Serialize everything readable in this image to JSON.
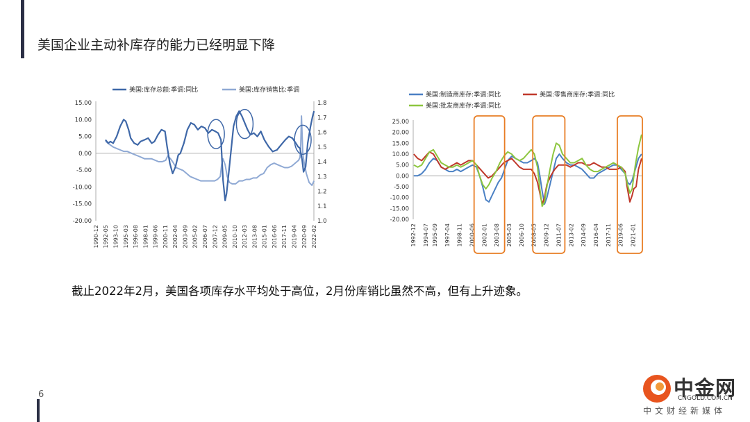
{
  "slide": {
    "title": "美国企业主动补库存的能力已经明显下降",
    "caption": "截止2022年2月，美国各项库存水平均处于高位，2月份库销比虽然不高，但有上升迹象。",
    "page_number": "6"
  },
  "logo": {
    "name": "中金网",
    "url": "CNGOLD.COM.CN",
    "sub": "中文财经新媒体",
    "brand_color": "#e8541e"
  },
  "chart_data": [
    {
      "type": "line",
      "dual_axis": true,
      "legend_position": "top",
      "series": [
        {
          "name": "美国:库存总额:季调:同比",
          "axis": "left",
          "color": "#3f68a8",
          "x": [
            1992.3,
            1992.7,
            1993.0,
            1993.4,
            1993.9,
            1994.4,
            1994.9,
            1995.2,
            1995.6,
            1995.9,
            1996.4,
            1996.9,
            1997.3,
            1997.9,
            1998.4,
            1998.9,
            1999.3,
            1999.8,
            2000.3,
            2000.8,
            2001.1,
            2001.5,
            2001.9,
            2002.3,
            2002.7,
            2003.0,
            2003.5,
            2004.0,
            2004.5,
            2005.0,
            2005.5,
            2006.0,
            2006.5,
            2007.0,
            2007.5,
            2008.0,
            2008.4,
            2008.8,
            2009.1,
            2009.4,
            2009.6,
            2009.9,
            2010.3,
            2010.6,
            2011.0,
            2011.4,
            2011.8,
            2012.2,
            2012.6,
            2013.0,
            2013.5,
            2014.0,
            2014.5,
            2015.0,
            2015.6,
            2016.2,
            2016.8,
            2017.4,
            2018.0,
            2018.5,
            2019.0,
            2019.5,
            2019.8,
            2020.1,
            2020.4,
            2020.6,
            2020.9,
            2021.2,
            2021.6,
            2021.9,
            2022.1
          ],
          "values": [
            4.0,
            3.0,
            3.5,
            3.0,
            5.0,
            8.0,
            10.0,
            9.5,
            7.0,
            4.5,
            3.0,
            2.5,
            3.5,
            4.0,
            4.5,
            3.0,
            3.5,
            5.5,
            7.0,
            6.5,
            2.0,
            -3.0,
            -6.0,
            -4.0,
            -0.5,
            0.0,
            3.0,
            7.0,
            9.0,
            8.5,
            7.0,
            8.0,
            7.5,
            6.0,
            7.0,
            6.5,
            6.0,
            4.0,
            -8.0,
            -14.0,
            -12.0,
            -6.0,
            2.0,
            8.0,
            11.0,
            12.5,
            11.0,
            9.0,
            7.0,
            5.5,
            6.0,
            5.0,
            6.5,
            4.0,
            2.0,
            0.5,
            1.0,
            2.5,
            4.0,
            5.0,
            4.5,
            3.0,
            2.0,
            1.5,
            -2.0,
            -5.5,
            -4.0,
            3.0,
            8.0,
            11.0,
            12.5
          ]
        },
        {
          "name": "美国:库存销售比:季调",
          "axis": "right",
          "color": "#8fa9d4",
          "x": [
            1992.3,
            1992.8,
            1993.4,
            1993.9,
            1994.4,
            1994.9,
            1995.4,
            1995.9,
            1996.4,
            1996.9,
            1997.4,
            1997.9,
            1998.4,
            1998.9,
            1999.4,
            1999.9,
            2000.4,
            2000.9,
            2001.2,
            2001.6,
            2001.9,
            2002.4,
            2002.9,
            2003.4,
            2003.9,
            2004.4,
            2004.9,
            2005.4,
            2005.9,
            2006.4,
            2006.9,
            2007.4,
            2007.9,
            2008.3,
            2008.7,
            2008.9,
            2009.1,
            2009.4,
            2009.7,
            2010.0,
            2010.4,
            2010.9,
            2011.4,
            2011.9,
            2012.4,
            2012.9,
            2013.4,
            2013.9,
            2014.4,
            2014.9,
            2015.4,
            2015.9,
            2016.4,
            2016.9,
            2017.4,
            2017.9,
            2018.4,
            2018.9,
            2019.4,
            2019.9,
            2020.1,
            2020.2,
            2020.3,
            2020.5,
            2020.7,
            2021.0,
            2021.4,
            2021.8,
            2022.1
          ],
          "values": [
            1.54,
            1.52,
            1.5,
            1.49,
            1.48,
            1.47,
            1.47,
            1.46,
            1.45,
            1.44,
            1.43,
            1.42,
            1.42,
            1.42,
            1.41,
            1.4,
            1.4,
            1.41,
            1.44,
            1.42,
            1.4,
            1.36,
            1.35,
            1.34,
            1.32,
            1.3,
            1.29,
            1.28,
            1.27,
            1.27,
            1.27,
            1.27,
            1.27,
            1.28,
            1.3,
            1.38,
            1.42,
            1.38,
            1.3,
            1.26,
            1.25,
            1.25,
            1.27,
            1.27,
            1.28,
            1.28,
            1.29,
            1.29,
            1.31,
            1.32,
            1.36,
            1.38,
            1.39,
            1.38,
            1.37,
            1.36,
            1.36,
            1.37,
            1.39,
            1.41,
            1.43,
            1.52,
            1.71,
            1.45,
            1.39,
            1.32,
            1.26,
            1.24,
            1.27
          ]
        }
      ],
      "left_axis": {
        "ylim": [
          -20,
          15
        ],
        "ticks": [
          "15.00",
          "10.00",
          "5.00",
          "0.00",
          "-5.00",
          "-10.00",
          "-15.00",
          "-20.00"
        ]
      },
      "right_axis": {
        "ylim": [
          1.0,
          1.8
        ],
        "ticks": [
          "1.80",
          "1.70",
          "1.60",
          "1.50",
          "1.40",
          "1.30",
          "1.20",
          "1.10",
          "1.00"
        ]
      },
      "x_ticks": [
        "1990-12",
        "1992-05",
        "1993-10",
        "1995-03",
        "1996-08",
        "1998-01",
        "1999-06",
        "2000-11",
        "2002-04",
        "2003-09",
        "2005-02",
        "2006-07",
        "2007-12",
        "2009-05",
        "2010-10",
        "2012-03",
        "2013-08",
        "2015-01",
        "2016-06",
        "2017-11",
        "2019-04",
        "2020-09",
        "2022-02"
      ],
      "xlim": [
        1990.92,
        2022.08
      ],
      "highlights": [
        {
          "shape": "ellipse",
          "x": 2008.1,
          "y": 5.7,
          "color": "#3f68a8"
        },
        {
          "shape": "ellipse",
          "x": 2012.2,
          "y": 8.7,
          "color": "#3f68a8"
        },
        {
          "shape": "ellipse",
          "x": 2020.5,
          "y": 4.0,
          "color": "#3f68a8"
        }
      ]
    },
    {
      "type": "line",
      "legend_position": "top",
      "series": [
        {
          "name": "美国:制造商库存:季调:同比",
          "color": "#4a80c4",
          "x": [
            1993.0,
            1993.5,
            1994.0,
            1994.5,
            1995.0,
            1995.5,
            1996.0,
            1996.5,
            1997.0,
            1997.5,
            1998.0,
            1998.5,
            1999.0,
            1999.5,
            2000.0,
            2000.5,
            2001.0,
            2001.4,
            2001.8,
            2002.2,
            2002.6,
            2003.0,
            2003.4,
            2003.8,
            2004.2,
            2004.6,
            2005.0,
            2005.5,
            2006.0,
            2006.5,
            2007.0,
            2007.5,
            2008.0,
            2008.4,
            2008.8,
            2009.1,
            2009.4,
            2009.7,
            2010.0,
            2010.4,
            2010.8,
            2011.2,
            2011.6,
            2012.0,
            2012.5,
            2013.0,
            2013.5,
            2014.0,
            2014.5,
            2015.0,
            2015.5,
            2016.0,
            2016.5,
            2017.0,
            2017.5,
            2018.0,
            2018.5,
            2019.0,
            2019.5,
            2020.0,
            2020.3,
            2020.6,
            2020.9,
            2021.3,
            2021.7,
            2022.1
          ],
          "values": [
            0,
            0,
            1,
            3,
            6,
            8,
            7,
            4,
            3,
            2,
            2,
            3,
            2,
            3,
            4,
            5,
            4,
            0,
            -5,
            -11,
            -12,
            -9,
            -6,
            -3,
            -1,
            3,
            7,
            9,
            8,
            7,
            6,
            6,
            7,
            8,
            6,
            0,
            -7,
            -13,
            -10,
            -4,
            2,
            8,
            10,
            8,
            6,
            5,
            5,
            4,
            3,
            1,
            -1,
            -1,
            1,
            2,
            3,
            4,
            5,
            5,
            3,
            1,
            -3,
            -4,
            -2,
            3,
            8,
            10
          ]
        },
        {
          "name": "美国:零售商库存:季调:同比",
          "color": "#c0392b",
          "x": [
            1993.0,
            1993.5,
            1994.0,
            1994.5,
            1995.0,
            1995.5,
            1996.0,
            1996.5,
            1997.0,
            1997.5,
            1998.0,
            1998.5,
            1999.0,
            1999.5,
            2000.0,
            2000.5,
            2001.0,
            2001.5,
            2002.0,
            2002.5,
            2003.0,
            2003.5,
            2004.0,
            2004.5,
            2005.0,
            2005.5,
            2006.0,
            2006.5,
            2007.0,
            2007.5,
            2008.0,
            2008.4,
            2008.8,
            2009.1,
            2009.4,
            2009.7,
            2010.0,
            2010.5,
            2011.0,
            2011.5,
            2012.0,
            2012.5,
            2013.0,
            2013.5,
            2014.0,
            2014.5,
            2015.0,
            2015.5,
            2016.0,
            2016.5,
            2017.0,
            2017.5,
            2018.0,
            2018.5,
            2019.0,
            2019.5,
            2020.0,
            2020.2,
            2020.4,
            2020.6,
            2020.9,
            2021.1,
            2021.4,
            2021.7,
            2022.1
          ],
          "values": [
            10,
            8,
            7,
            9,
            11,
            10,
            7,
            4,
            3,
            4,
            5,
            6,
            5,
            6,
            7,
            7,
            5,
            3,
            1,
            -1,
            0,
            2,
            4,
            6,
            7,
            8,
            6,
            4,
            3,
            3,
            3,
            1,
            -3,
            -8,
            -13,
            -10,
            -4,
            0,
            3,
            5,
            5,
            5,
            4,
            5,
            6,
            6,
            5,
            5,
            6,
            5,
            4,
            4,
            3,
            3,
            3,
            4,
            2,
            -4,
            -8,
            -12,
            -9,
            -6,
            -5,
            3,
            8
          ]
        },
        {
          "name": "美国:批发商库存:季调:同比",
          "color": "#8dc63f",
          "x": [
            1993.0,
            1993.5,
            1994.0,
            1994.5,
            1995.0,
            1995.5,
            1996.0,
            1996.5,
            1997.0,
            1997.5,
            1998.0,
            1998.5,
            1999.0,
            1999.5,
            2000.0,
            2000.5,
            2001.0,
            2001.4,
            2001.8,
            2002.2,
            2002.6,
            2003.0,
            2003.5,
            2004.0,
            2004.5,
            2005.0,
            2005.5,
            2006.0,
            2006.5,
            2007.0,
            2007.5,
            2008.0,
            2008.4,
            2008.8,
            2009.1,
            2009.4,
            2009.7,
            2010.0,
            2010.4,
            2010.8,
            2011.2,
            2011.6,
            2012.0,
            2012.5,
            2013.0,
            2013.5,
            2014.0,
            2014.5,
            2015.0,
            2015.5,
            2016.0,
            2016.5,
            2017.0,
            2017.5,
            2018.0,
            2018.5,
            2019.0,
            2019.5,
            2020.0,
            2020.3,
            2020.6,
            2020.9,
            2021.3,
            2021.7,
            2022.1
          ],
          "values": [
            5,
            4,
            5,
            8,
            11,
            12,
            9,
            6,
            5,
            4,
            4,
            5,
            4,
            5,
            6,
            7,
            5,
            0,
            -4,
            -6,
            -4,
            -1,
            2,
            6,
            9,
            11,
            10,
            8,
            7,
            8,
            10,
            12,
            10,
            4,
            -6,
            -14,
            -12,
            -5,
            3,
            10,
            15,
            14,
            10,
            8,
            6,
            6,
            7,
            8,
            5,
            3,
            2,
            2,
            3,
            4,
            5,
            6,
            5,
            4,
            1,
            -4,
            -8,
            -6,
            5,
            13,
            19
          ]
        }
      ],
      "ylim": [
        -20,
        25
      ],
      "y_ticks": [
        "25.00",
        "20.00",
        "15.00",
        "10.00",
        "5.00",
        "0.00",
        "-5.00",
        "-10.00",
        "-15.00",
        "-20.00"
      ],
      "x_ticks": [
        "1992-12",
        "1994-07",
        "1995-09",
        "1997-04",
        "1998-11",
        "2000-06",
        "2002-01",
        "2003-08",
        "2005-03",
        "2006-10",
        "2008-05",
        "2009-12",
        "2011-07",
        "2013-02",
        "2014-09",
        "2016-04",
        "2017-11",
        "2019-06",
        "2021-01"
      ],
      "xlim": [
        1992.92,
        2022.2
      ],
      "highlights": [
        {
          "shape": "rounded-rect",
          "x0": 2000.7,
          "x1": 2004.6,
          "color": "#e87d24"
        },
        {
          "shape": "rounded-rect",
          "x0": 2008.2,
          "x1": 2012.3,
          "color": "#e87d24"
        },
        {
          "shape": "rounded-rect",
          "x0": 2019.0,
          "x1": 2022.2,
          "color": "#e87d24"
        }
      ]
    }
  ]
}
